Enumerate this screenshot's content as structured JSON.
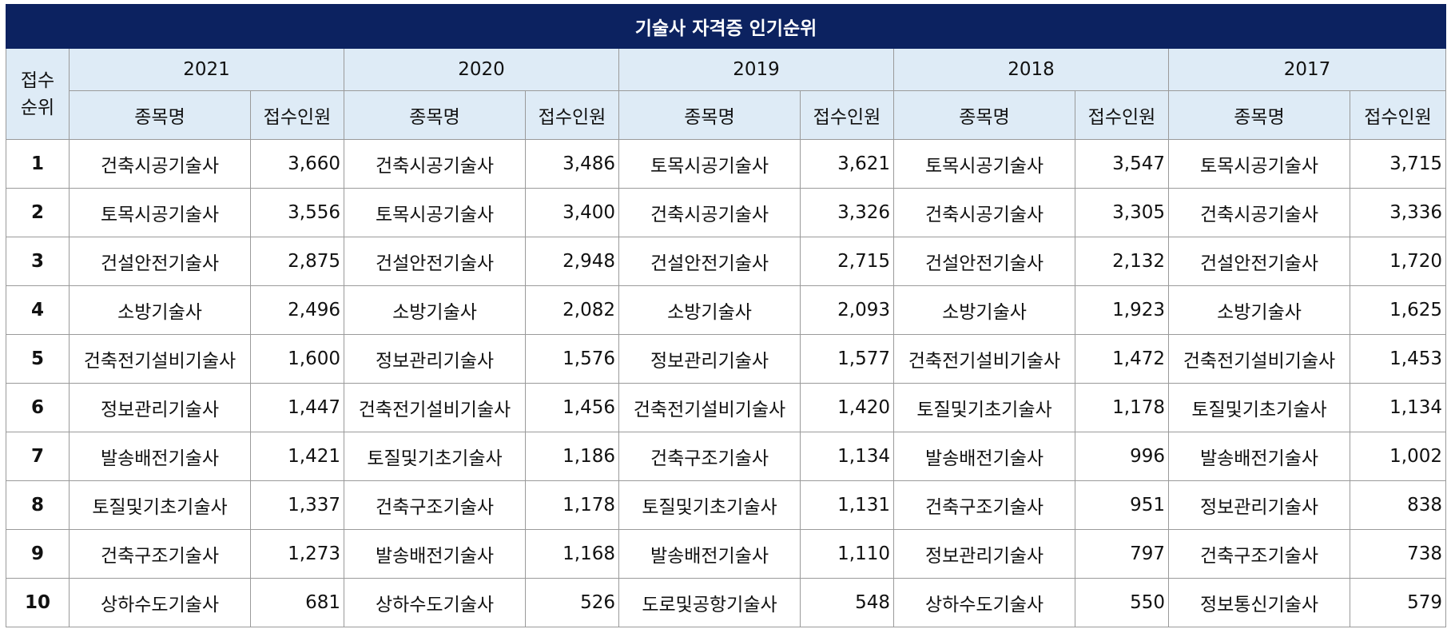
{
  "title": "기술사 자격증 인기순위",
  "rank_header": [
    "접수",
    "순위"
  ],
  "name_header": "종목명",
  "count_header": "접수인원",
  "years": [
    "2021",
    "2020",
    "2019",
    "2018",
    "2017"
  ],
  "rows": [
    {
      "rank": "1",
      "cells": [
        {
          "name": "건축시공기술사",
          "count": "3,660"
        },
        {
          "name": "건축시공기술사",
          "count": "3,486"
        },
        {
          "name": "토목시공기술사",
          "count": "3,621"
        },
        {
          "name": "토목시공기술사",
          "count": "3,547"
        },
        {
          "name": "토목시공기술사",
          "count": "3,715"
        }
      ]
    },
    {
      "rank": "2",
      "cells": [
        {
          "name": "토목시공기술사",
          "count": "3,556"
        },
        {
          "name": "토목시공기술사",
          "count": "3,400"
        },
        {
          "name": "건축시공기술사",
          "count": "3,326"
        },
        {
          "name": "건축시공기술사",
          "count": "3,305"
        },
        {
          "name": "건축시공기술사",
          "count": "3,336"
        }
      ]
    },
    {
      "rank": "3",
      "cells": [
        {
          "name": "건설안전기술사",
          "count": "2,875"
        },
        {
          "name": "건설안전기술사",
          "count": "2,948"
        },
        {
          "name": "건설안전기술사",
          "count": "2,715"
        },
        {
          "name": "건설안전기술사",
          "count": "2,132"
        },
        {
          "name": "건설안전기술사",
          "count": "1,720"
        }
      ]
    },
    {
      "rank": "4",
      "cells": [
        {
          "name": "소방기술사",
          "count": "2,496"
        },
        {
          "name": "소방기술사",
          "count": "2,082"
        },
        {
          "name": "소방기술사",
          "count": "2,093"
        },
        {
          "name": "소방기술사",
          "count": "1,923"
        },
        {
          "name": "소방기술사",
          "count": "1,625"
        }
      ]
    },
    {
      "rank": "5",
      "cells": [
        {
          "name": "건축전기설비기술사",
          "count": "1,600"
        },
        {
          "name": "정보관리기술사",
          "count": "1,576"
        },
        {
          "name": "정보관리기술사",
          "count": "1,577"
        },
        {
          "name": "건축전기설비기술사",
          "count": "1,472"
        },
        {
          "name": "건축전기설비기술사",
          "count": "1,453"
        }
      ]
    },
    {
      "rank": "6",
      "cells": [
        {
          "name": "정보관리기술사",
          "count": "1,447"
        },
        {
          "name": "건축전기설비기술사",
          "count": "1,456"
        },
        {
          "name": "건축전기설비기술사",
          "count": "1,420"
        },
        {
          "name": "토질및기초기술사",
          "count": "1,178"
        },
        {
          "name": "토질및기초기술사",
          "count": "1,134"
        }
      ]
    },
    {
      "rank": "7",
      "cells": [
        {
          "name": "발송배전기술사",
          "count": "1,421"
        },
        {
          "name": "토질및기초기술사",
          "count": "1,186"
        },
        {
          "name": "건축구조기술사",
          "count": "1,134"
        },
        {
          "name": "발송배전기술사",
          "count": "996"
        },
        {
          "name": "발송배전기술사",
          "count": "1,002"
        }
      ]
    },
    {
      "rank": "8",
      "cells": [
        {
          "name": "토질및기초기술사",
          "count": "1,337"
        },
        {
          "name": "건축구조기술사",
          "count": "1,178"
        },
        {
          "name": "토질및기초기술사",
          "count": "1,131"
        },
        {
          "name": "건축구조기술사",
          "count": "951"
        },
        {
          "name": "정보관리기술사",
          "count": "838"
        }
      ]
    },
    {
      "rank": "9",
      "cells": [
        {
          "name": "건축구조기술사",
          "count": "1,273"
        },
        {
          "name": "발송배전기술사",
          "count": "1,168"
        },
        {
          "name": "발송배전기술사",
          "count": "1,110"
        },
        {
          "name": "정보관리기술사",
          "count": "797"
        },
        {
          "name": "건축구조기술사",
          "count": "738"
        }
      ]
    },
    {
      "rank": "10",
      "cells": [
        {
          "name": "상하수도기술사",
          "count": "681"
        },
        {
          "name": "상하수도기술사",
          "count": "526"
        },
        {
          "name": "도로및공항기술사",
          "count": "548"
        },
        {
          "name": "상하수도기술사",
          "count": "550"
        },
        {
          "name": "정보통신기술사",
          "count": "579"
        }
      ]
    }
  ],
  "colors": {
    "title_bg": "#0c2260",
    "header_bg": "#deebf6",
    "border": "#9a9a9a"
  }
}
